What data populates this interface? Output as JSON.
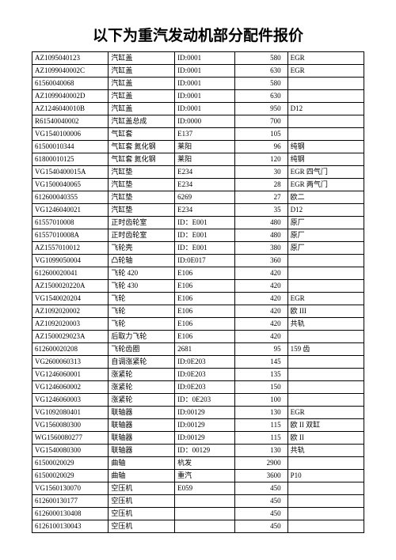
{
  "title": "以下为重汽发动机部分配件报价",
  "table": {
    "columns": [
      "part_no",
      "name",
      "code",
      "price",
      "remark"
    ],
    "col_align": [
      "left",
      "left",
      "left",
      "right",
      "left"
    ],
    "border_color": "#000000",
    "font_size": 9,
    "rows": [
      [
        "AZ1095040123",
        "汽缸盖",
        "ID:0001",
        "580",
        "EGR"
      ],
      [
        "AZ1099040002C",
        "汽缸盖",
        "ID:0001",
        "630",
        "EGR"
      ],
      [
        "61560040068",
        "汽缸盖",
        "ID:0001",
        "580",
        ""
      ],
      [
        "AZ1099040002D",
        "汽缸盖",
        "ID:0001",
        "630",
        ""
      ],
      [
        "AZ1246040010B",
        "汽缸盖",
        "ID:0001",
        "950",
        "D12"
      ],
      [
        "R61540040002",
        "汽缸盖总成",
        "ID:0000",
        "700",
        ""
      ],
      [
        "VG1540100006",
        "气缸套",
        "E137",
        "105",
        ""
      ],
      [
        "61500010344",
        "气缸套 氮化钢",
        "莱阳",
        "96",
        "纯钢"
      ],
      [
        "61800010125",
        "气缸套 氮化钢",
        "莱阳",
        "120",
        "纯钢"
      ],
      [
        "VG1540400015A",
        "汽缸垫",
        "E234",
        "30",
        "EGR 四气门"
      ],
      [
        "VG1500040065",
        "汽缸垫",
        "E234",
        "28",
        "EGR 两气门"
      ],
      [
        "612600040355",
        "汽缸垫",
        "6269",
        "27",
        "欧二"
      ],
      [
        "VG1246040021",
        "汽缸垫",
        "E234",
        "35",
        "D12"
      ],
      [
        "61557010008",
        "正时齿轮室",
        "ID：E001",
        "480",
        "原厂"
      ],
      [
        "61557010008A",
        "正时齿轮室",
        "ID：E001",
        "480",
        "原厂"
      ],
      [
        "AZ1557010012",
        "飞轮壳",
        "ID：E001",
        "380",
        "原厂"
      ],
      [
        "VG1099050004",
        "凸轮轴",
        "ID:0E017",
        "360",
        ""
      ],
      [
        "612600020041",
        "飞轮 420",
        "E106",
        "420",
        ""
      ],
      [
        "AZ1500020220A",
        "飞轮 430",
        "E106",
        "420",
        ""
      ],
      [
        "VG1540020204",
        "飞轮",
        "E106",
        "420",
        "EGR"
      ],
      [
        "AZ1092020002",
        "飞轮",
        "E106",
        "420",
        "欧 III"
      ],
      [
        "AZ1092020003",
        "飞轮",
        "E106",
        "420",
        "共轨"
      ],
      [
        "AZ1500029023A",
        "后取力飞轮",
        "E106",
        "420",
        ""
      ],
      [
        "612600020208",
        "飞轮齿圈",
        "2681",
        "95",
        "159 齿"
      ],
      [
        "VG2600060313",
        "自调涨紧轮",
        "ID:0E203",
        "145",
        ""
      ],
      [
        "VG1246060001",
        "涨紧轮",
        "ID:0E203",
        "135",
        ""
      ],
      [
        "VG1246060002",
        "涨紧轮",
        "ID:0E203",
        "150",
        ""
      ],
      [
        "VG1246060003",
        "涨紧轮",
        "ID：0E203",
        "100",
        ""
      ],
      [
        "VG1092080401",
        "联轴器",
        "ID:00129",
        "130",
        "EGR"
      ],
      [
        "VG1560080300",
        "联轴器",
        "ID:00129",
        "115",
        "欧 II 双缸"
      ],
      [
        "WG1560080277",
        "联轴器",
        "ID:00129",
        "115",
        "欧 II"
      ],
      [
        "VG1540080300",
        "联轴器",
        "ID：00129",
        "130",
        "共轨"
      ],
      [
        "61500020029",
        "曲轴",
        "杭发",
        "",
        "2900"
      ],
      [
        "61500020029",
        "曲轴",
        "重汽",
        "",
        "3600"
      ],
      [
        "VG1560130070",
        "空压机",
        "E059",
        "",
        "450"
      ],
      [
        "612600130177",
        "空压机",
        "",
        "",
        "450"
      ],
      [
        "6126000130408",
        "空压机",
        "",
        "",
        "450"
      ],
      [
        "6126100130043",
        "空压机",
        "",
        "",
        "450"
      ]
    ]
  }
}
